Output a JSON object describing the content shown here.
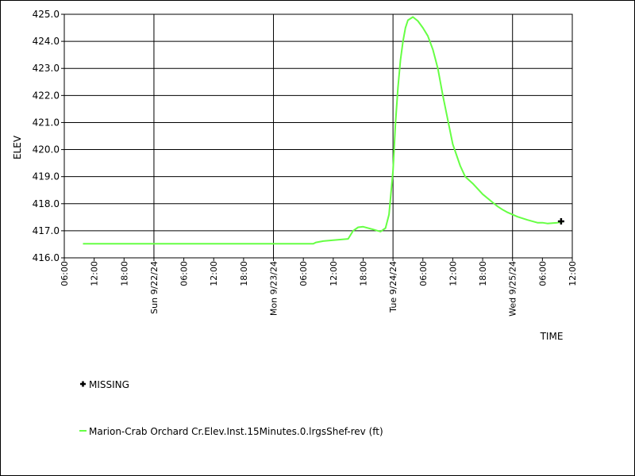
{
  "chart_data": {
    "type": "line",
    "ylabel": "ELEV",
    "xlabel": "TIME",
    "ylim": [
      416.0,
      425.0
    ],
    "yticks": [
      416.0,
      417.0,
      418.0,
      419.0,
      420.0,
      421.0,
      422.0,
      423.0,
      424.0,
      425.0
    ],
    "xlim_hours": [
      0,
      102
    ],
    "xtick_labels": [
      "06:00",
      "12:00",
      "18:00",
      "Sun 9/22/24",
      "06:00",
      "12:00",
      "18:00",
      "Mon 9/23/24",
      "06:00",
      "12:00",
      "18:00",
      "Tue 9/24/24",
      "06:00",
      "12:00",
      "18:00",
      "Wed 9/25/24",
      "06:00",
      "12:00"
    ],
    "major_gridline_labels": [
      "Sun 9/22/24",
      "Mon 9/23/24",
      "Tue 9/24/24",
      "Wed 9/25/24"
    ],
    "grid": true,
    "series": [
      {
        "name": "Marion-Crab Orchard Cr.Elev.Inst.15Minutes.0.lrgsShef-rev (ft)",
        "color": "#66ff44",
        "x_hours": [
          3.75,
          10,
          20,
          30,
          40,
          45,
          48,
          50,
          50.5,
          52,
          54,
          57,
          58,
          59,
          60,
          62,
          63.5,
          64.5,
          65.2,
          66,
          66.5,
          67,
          67.5,
          68,
          68.5,
          69,
          70,
          71,
          72,
          73,
          74,
          75,
          76,
          78,
          79.5,
          80.5,
          82,
          84,
          86,
          87,
          88,
          89,
          90,
          91,
          93,
          95,
          96,
          97,
          99,
          100
        ],
        "values": [
          416.52,
          416.52,
          416.52,
          416.52,
          416.52,
          416.52,
          416.52,
          416.52,
          416.57,
          416.62,
          416.65,
          416.7,
          417.0,
          417.13,
          417.15,
          417.05,
          416.97,
          417.1,
          417.6,
          419.2,
          421.0,
          422.3,
          423.3,
          424.0,
          424.5,
          424.78,
          424.9,
          424.75,
          424.5,
          424.2,
          423.7,
          423.0,
          422.0,
          420.2,
          419.4,
          419.0,
          418.75,
          418.35,
          418.05,
          417.9,
          417.78,
          417.68,
          417.6,
          417.52,
          417.4,
          417.3,
          417.3,
          417.27,
          417.3,
          417.33
        ]
      }
    ],
    "markers": [
      {
        "name": "MISSING",
        "symbol": "cross",
        "color": "#000000",
        "x_hours": 99.75,
        "value": 417.35
      }
    ],
    "legend": {
      "position": "bottom-left",
      "entries": [
        "MISSING",
        "Marion-Crab Orchard Cr.Elev.Inst.15Minutes.0.lrgsShef-rev (ft)"
      ]
    }
  }
}
